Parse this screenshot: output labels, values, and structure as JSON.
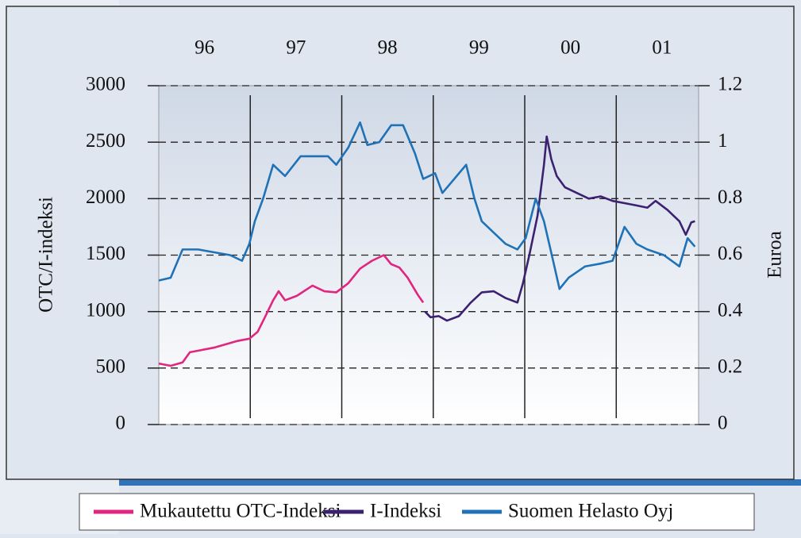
{
  "chart_data": {
    "type": "line",
    "ylabel": "OTC/I-indeksi",
    "y2label": "Euroa",
    "xlim": [
      1996,
      2001.9
    ],
    "xticks": [
      {
        "value": 1996.5,
        "label": "96"
      },
      {
        "value": 1997.5,
        "label": "97"
      },
      {
        "value": 1998.5,
        "label": "98"
      },
      {
        "value": 1999.5,
        "label": "99"
      },
      {
        "value": 2000.5,
        "label": "00"
      },
      {
        "value": 2001.5,
        "label": "01"
      }
    ],
    "xgrid": [
      1997,
      1998,
      1999,
      2000,
      2001
    ],
    "ylim": [
      0,
      3000
    ],
    "yticks": [
      0,
      500,
      1000,
      1500,
      2000,
      2500,
      3000
    ],
    "y2lim": [
      0,
      1.2
    ],
    "y2ticks": [
      0,
      0.2,
      0.4,
      0.6,
      0.8,
      1,
      1.2
    ],
    "grid": true,
    "series": [
      {
        "name": "Mukautettu OTC-Indeksi",
        "color": "#e0267f",
        "axis": "y",
        "x": [
          1996,
          1996.13,
          1996.26,
          1996.34,
          1996.6,
          1996.86,
          1996.99,
          1997.08,
          1997.16,
          1997.25,
          1997.31,
          1997.38,
          1997.51,
          1997.68,
          1997.81,
          1997.94,
          1998.07,
          1998.2,
          1998.33,
          1998.46,
          1998.54,
          1998.63,
          1998.72,
          1998.83,
          1998.89
        ],
        "values": [
          540,
          520,
          550,
          640,
          680,
          740,
          760,
          820,
          950,
          1100,
          1180,
          1100,
          1140,
          1230,
          1180,
          1170,
          1250,
          1380,
          1450,
          1500,
          1420,
          1390,
          1300,
          1150,
          1080
        ]
      },
      {
        "name": "I-Indeksi",
        "color": "#3b2170",
        "axis": "y",
        "x": [
          1998.91,
          1998.97,
          1999.06,
          1999.15,
          1999.28,
          1999.41,
          1999.53,
          1999.66,
          1999.79,
          1999.92,
          1999.98,
          2000.05,
          2000.14,
          2000.21,
          2000.24,
          2000.29,
          2000.35,
          2000.44,
          2000.57,
          2000.7,
          2000.83,
          2000.96,
          2001.09,
          2001.22,
          2001.34,
          2001.43,
          2001.56,
          2001.69,
          2001.76,
          2001.82,
          2001.86
        ],
        "values": [
          1000,
          950,
          960,
          920,
          960,
          1080,
          1170,
          1180,
          1120,
          1080,
          1250,
          1500,
          1850,
          2300,
          2550,
          2350,
          2200,
          2100,
          2050,
          2000,
          2020,
          1980,
          1960,
          1940,
          1920,
          1980,
          1900,
          1800,
          1680,
          1790,
          1800
        ]
      },
      {
        "name": "Suomen Helasto Oyj",
        "color": "#1f72b5",
        "axis": "y2",
        "x": [
          1996,
          1996.13,
          1996.26,
          1996.43,
          1996.78,
          1996.91,
          1996.99,
          1997.05,
          1997.14,
          1997.25,
          1997.38,
          1997.55,
          1997.85,
          1997.94,
          1998.07,
          1998.2,
          1998.28,
          1998.41,
          1998.54,
          1998.67,
          1998.8,
          1998.89,
          1999.02,
          1999.1,
          1999.23,
          1999.36,
          1999.45,
          1999.53,
          1999.66,
          1999.79,
          1999.92,
          2000.01,
          2000.12,
          2000.21,
          2000.31,
          2000.38,
          2000.48,
          2000.66,
          2000.83,
          2000.96,
          2001.09,
          2001.22,
          2001.34,
          2001.52,
          2001.69,
          2001.78,
          2001.86
        ],
        "values": [
          0.51,
          0.52,
          0.62,
          0.62,
          0.6,
          0.58,
          0.64,
          0.72,
          0.8,
          0.92,
          0.88,
          0.95,
          0.95,
          0.92,
          0.98,
          1.07,
          0.99,
          1.0,
          1.06,
          1.06,
          0.96,
          0.87,
          0.89,
          0.82,
          0.87,
          0.92,
          0.8,
          0.72,
          0.68,
          0.64,
          0.62,
          0.66,
          0.8,
          0.72,
          0.58,
          0.48,
          0.52,
          0.56,
          0.57,
          0.58,
          0.7,
          0.64,
          0.62,
          0.6,
          0.56,
          0.66,
          0.63
        ]
      }
    ]
  }
}
